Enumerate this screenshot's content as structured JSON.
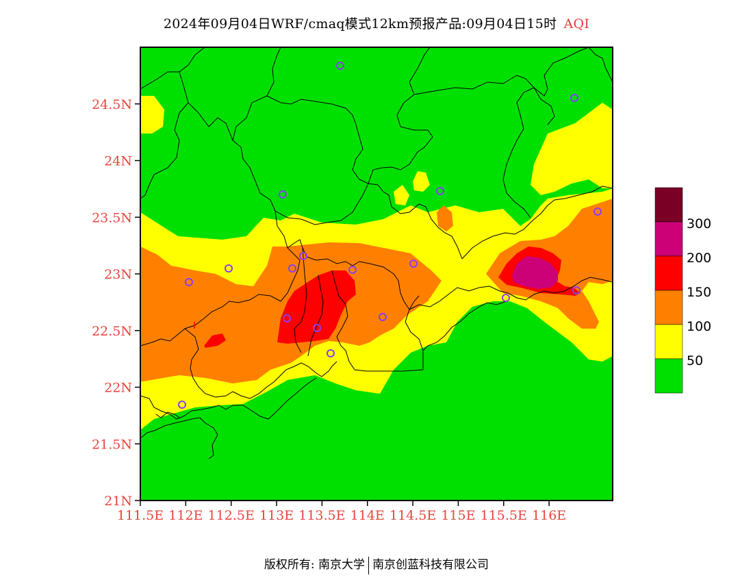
{
  "title": {
    "main": "2024年09月04日WRF/cmaq模式12km预报产品:09月04日15时",
    "variable": "AQI"
  },
  "map": {
    "lat_range": [
      21,
      25
    ],
    "lon_range": [
      111.5,
      116.7
    ],
    "lat_ticks": [
      "21N",
      "21.5N",
      "22N",
      "22.5N",
      "23N",
      "23.5N",
      "24N",
      "24.5N"
    ],
    "lon_ticks": [
      "111.5E",
      "112E",
      "112.5E",
      "113E",
      "113.5E",
      "114E",
      "114.5E",
      "115E",
      "115.5E",
      "116E"
    ],
    "colors": {
      "good": "#00e000",
      "moderate": "#ffff00",
      "usg": "#ff8000",
      "unhealthy": "#ff0000",
      "very_unhealthy": "#cc0077",
      "hazardous": "#7a0026",
      "station": "#8a3df2"
    }
  },
  "legend": {
    "labels": [
      "50",
      "100",
      "150",
      "200",
      "300"
    ]
  },
  "footer": {
    "left": "版权所有: 南京大学",
    "right": "南京创蓝科技有限公司"
  }
}
